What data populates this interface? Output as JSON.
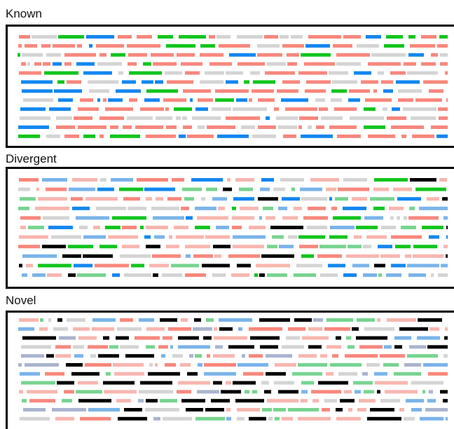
{
  "panels": [
    {
      "title": "Known"
    },
    {
      "title": "Divergent"
    },
    {
      "title": "Novel"
    }
  ],
  "colors": {
    "green": "#11c51d",
    "blue": "#1287f0",
    "salmon": "#f8877c",
    "light_salmon": "#f8b6ae",
    "light_blue": "#7ab4ea",
    "light_green": "#77d48f",
    "black": "#000000",
    "gray": "#d4d4d4",
    "grayblue": "#a9b4cf"
  },
  "panel_palettes": {
    "known": [
      "green",
      "blue",
      "salmon",
      "salmon",
      "salmon",
      "gray"
    ],
    "divergent": [
      "salmon",
      "light_salmon",
      "black",
      "light_salmon",
      "green",
      "blue",
      "light_blue",
      "light_green",
      "gray"
    ],
    "novel": [
      "black",
      "light_salmon",
      "light_salmon",
      "salmon",
      "black",
      "light_green",
      "light_blue",
      "gray",
      "grayblue"
    ]
  }
}
